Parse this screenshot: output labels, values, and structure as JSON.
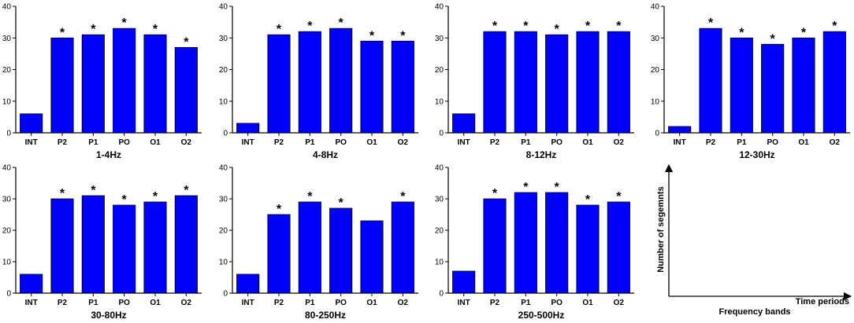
{
  "colors": {
    "bar": "#0000ff",
    "axis": "#000000",
    "text": "#000000"
  },
  "chart_data": [
    {
      "type": "bar",
      "title": "1-4Hz",
      "categories": [
        "INT",
        "P2",
        "P1",
        "PO",
        "O1",
        "O2"
      ],
      "values": [
        6,
        30,
        31,
        33,
        31,
        27
      ],
      "significant": [
        "",
        "*",
        "*",
        "*",
        "*",
        "*"
      ],
      "ylim": [
        0,
        40
      ],
      "yticks": [
        "0",
        "10",
        "20",
        "30",
        "40"
      ]
    },
    {
      "type": "bar",
      "title": "4-8Hz",
      "categories": [
        "INT",
        "P2",
        "P1",
        "PO",
        "O1",
        "O2"
      ],
      "values": [
        3,
        31,
        32,
        33,
        29,
        29
      ],
      "significant": [
        "",
        "*",
        "*",
        "*",
        "*",
        "*"
      ],
      "ylim": [
        0,
        40
      ],
      "yticks": [
        "0",
        "10",
        "20",
        "30",
        "40"
      ]
    },
    {
      "type": "bar",
      "title": "8-12Hz",
      "categories": [
        "INT",
        "P2",
        "P1",
        "PO",
        "O1",
        "O2"
      ],
      "values": [
        6,
        32,
        32,
        31,
        32,
        32
      ],
      "significant": [
        "",
        "*",
        "*",
        "*",
        "*",
        "*"
      ],
      "ylim": [
        0,
        40
      ],
      "yticks": [
        "0",
        "10",
        "20",
        "30",
        "40"
      ]
    },
    {
      "type": "bar",
      "title": "12-30Hz",
      "categories": [
        "INT",
        "P2",
        "P1",
        "PO",
        "O1",
        "O2"
      ],
      "values": [
        2,
        33,
        30,
        28,
        30,
        32
      ],
      "significant": [
        "",
        "*",
        "*",
        "*",
        "*",
        "*"
      ],
      "ylim": [
        0,
        40
      ],
      "yticks": [
        "0",
        "10",
        "20",
        "30",
        "40"
      ]
    },
    {
      "type": "bar",
      "title": "30-80Hz",
      "categories": [
        "INT",
        "P2",
        "P1",
        "PO",
        "O1",
        "O2"
      ],
      "values": [
        6,
        30,
        31,
        28,
        29,
        31
      ],
      "significant": [
        "",
        "*",
        "*",
        "*",
        "*",
        "*"
      ],
      "ylim": [
        0,
        40
      ],
      "yticks": [
        "0",
        "10",
        "20",
        "30",
        "40"
      ]
    },
    {
      "type": "bar",
      "title": "80-250Hz",
      "categories": [
        "INT",
        "P2",
        "P1",
        "PO",
        "O1",
        "O2"
      ],
      "values": [
        6,
        25,
        29,
        27,
        23,
        29
      ],
      "significant": [
        "",
        "*",
        "*",
        "*",
        "",
        "*"
      ],
      "ylim": [
        0,
        40
      ],
      "yticks": [
        "0",
        "10",
        "20",
        "30",
        "40"
      ]
    },
    {
      "type": "bar",
      "title": "250-500Hz",
      "categories": [
        "INT",
        "P2",
        "P1",
        "PO",
        "O1",
        "O2"
      ],
      "values": [
        7,
        30,
        32,
        32,
        28,
        29
      ],
      "significant": [
        "",
        "*",
        "*",
        "*",
        "*",
        "*"
      ],
      "ylim": [
        0,
        40
      ],
      "yticks": [
        "0",
        "10",
        "20",
        "30",
        "40"
      ]
    }
  ],
  "legend": {
    "ylabel": "Number of segemnts",
    "xlabel_right": "Time periods",
    "xlabel_bottom": "Frequency bands"
  }
}
